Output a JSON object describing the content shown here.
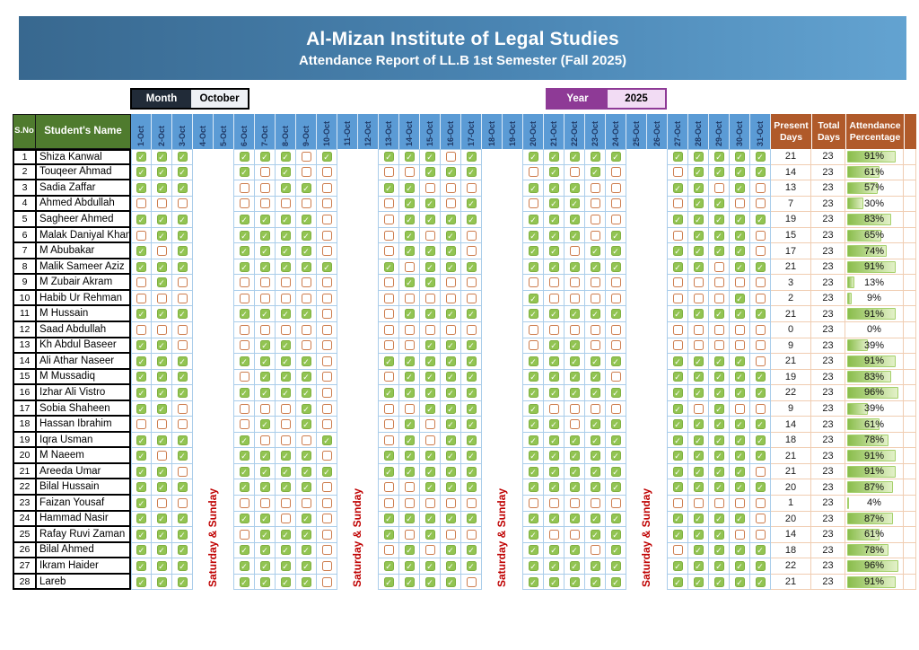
{
  "banner": {
    "title": "Al-Mizan Institute of Legal Studies",
    "subtitle": "Attendance Report of LL.B 1st Semester (Fall 2025)"
  },
  "filters": {
    "month_label": "Month",
    "month_value": "October",
    "year_label": "Year",
    "year_value": "2025"
  },
  "colors": {
    "banner_gradient_left": "#38688f",
    "banner_gradient_right": "#63a3d1",
    "header_green": "#4f7b2e",
    "header_blue": "#5b9bd5",
    "header_orange": "#b05a2a",
    "day_header_text": "#1f3864",
    "checked_green": "#92c452",
    "unchecked_border_orange": "#cd7d4e",
    "weekend_red": "#bf0000",
    "month_box_dark": "#212b38",
    "year_box_purple": "#8e3a96",
    "percent_bar_green": "#8abd4c"
  },
  "table": {
    "sno_header": "S.No",
    "name_header": "Student's Name",
    "present_header": "Present Days",
    "total_header": "Total Days",
    "attendance_header": "Attendance Percentage",
    "weekend_label": "Saturday & Sunday",
    "weekend_start_days": [
      4,
      11,
      18,
      25
    ],
    "school_days": [
      1,
      2,
      3,
      6,
      7,
      8,
      9,
      10,
      13,
      14,
      15,
      16,
      17,
      20,
      21,
      22,
      23,
      24,
      27,
      28,
      29,
      30,
      31
    ],
    "day_headers": [
      "1-Oct",
      "2-Oct",
      "3-Oct",
      "4-Oct",
      "5-Oct",
      "6-Oct",
      "7-Oct",
      "8-Oct",
      "9-Oct",
      "10-Oct",
      "11-Oct",
      "12-Oct",
      "13-Oct",
      "14-Oct",
      "15-Oct",
      "16-Oct",
      "17-Oct",
      "18-Oct",
      "19-Oct",
      "20-Oct",
      "21-Oct",
      "22-Oct",
      "23-Oct",
      "24-Oct",
      "25-Oct",
      "26-Oct",
      "27-Oct",
      "28-Oct",
      "29-Oct",
      "30-Oct",
      "31-Oct"
    ],
    "students": [
      {
        "sno": 1,
        "name": "Shiza Kanwal",
        "attendance": "11111101111011111111111",
        "present": 21,
        "total": 23,
        "percent": "91%"
      },
      {
        "sno": 2,
        "name": "Touqeer Ahmad",
        "attendance": "11110100001110101001111",
        "present": 14,
        "total": 23,
        "percent": "61%"
      },
      {
        "sno": 3,
        "name": "Sadia Zaffar",
        "attendance": "11100110110001110011010",
        "present": 13,
        "total": 23,
        "percent": "57%"
      },
      {
        "sno": 4,
        "name": "Ahmed Abdullah",
        "attendance": "00000000011010110001100",
        "present": 7,
        "total": 23,
        "percent": "30%"
      },
      {
        "sno": 5,
        "name": "Sagheer Ahmed",
        "attendance": "11111110011111110011111",
        "present": 19,
        "total": 23,
        "percent": "83%"
      },
      {
        "sno": 6,
        "name": "Malak Daniyal Khan",
        "attendance": "01111110010101110101110",
        "present": 15,
        "total": 23,
        "percent": "65%"
      },
      {
        "sno": 7,
        "name": "M Abubakar",
        "attendance": "10111110011101101111110",
        "present": 17,
        "total": 23,
        "percent": "74%"
      },
      {
        "sno": 8,
        "name": "Malik Sameer Aziz",
        "attendance": "11111111101111111111011",
        "present": 21,
        "total": 23,
        "percent": "91%"
      },
      {
        "sno": 9,
        "name": "M Zubair Akram",
        "attendance": "01000000011000000000000",
        "present": 3,
        "total": 23,
        "percent": "13%"
      },
      {
        "sno": 10,
        "name": "Habib Ur Rehman",
        "attendance": "00000000000001000000010",
        "present": 2,
        "total": 23,
        "percent": "9%"
      },
      {
        "sno": 11,
        "name": "M Hussain",
        "attendance": "11111110011111111111111",
        "present": 21,
        "total": 23,
        "percent": "91%"
      },
      {
        "sno": 12,
        "name": "Saad Abdullah",
        "attendance": "00000000000000000000000",
        "present": 0,
        "total": 23,
        "percent": "0%"
      },
      {
        "sno": 13,
        "name": "Kh Abdul Baseer",
        "attendance": "11001100001110110000000",
        "present": 9,
        "total": 23,
        "percent": "39%"
      },
      {
        "sno": 14,
        "name": "Ali Athar Naseer",
        "attendance": "11111110111111111111110",
        "present": 21,
        "total": 23,
        "percent": "91%"
      },
      {
        "sno": 15,
        "name": "M Mussadiq",
        "attendance": "11101110011111111011111",
        "present": 19,
        "total": 23,
        "percent": "83%"
      },
      {
        "sno": 16,
        "name": "Izhar Ali Vistro",
        "attendance": "11111110111111111111111",
        "present": 22,
        "total": 23,
        "percent": "96%"
      },
      {
        "sno": 17,
        "name": "Sobia Shaheen",
        "attendance": "11000010001111000010100",
        "present": 9,
        "total": 23,
        "percent": "39%"
      },
      {
        "sno": 18,
        "name": "Hassan Ibrahim",
        "attendance": "00001010010111101111111",
        "present": 14,
        "total": 23,
        "percent": "61%"
      },
      {
        "sno": 19,
        "name": "Iqra Usman",
        "attendance": "11110001010111111111111",
        "present": 18,
        "total": 23,
        "percent": "78%"
      },
      {
        "sno": 20,
        "name": "M Naeem",
        "attendance": "10111110111111111111111",
        "present": 21,
        "total": 23,
        "percent": "91%"
      },
      {
        "sno": 21,
        "name": "Areeda Umar",
        "attendance": "11011111111111111111110",
        "present": 21,
        "total": 23,
        "percent": "91%"
      },
      {
        "sno": 22,
        "name": "Bilal Hussain",
        "attendance": "11111110001111111111111",
        "present": 20,
        "total": 23,
        "percent": "87%"
      },
      {
        "sno": 23,
        "name": "Faizan Yousaf",
        "attendance": "10000000000000000000000",
        "present": 1,
        "total": 23,
        "percent": "4%"
      },
      {
        "sno": 24,
        "name": "Hammad Nasir",
        "attendance": "11111010111111111111110",
        "present": 20,
        "total": 23,
        "percent": "87%"
      },
      {
        "sno": 25,
        "name": "Rafay Ruvi Zaman",
        "attendance": "11101110101001001111100",
        "present": 14,
        "total": 23,
        "percent": "61%"
      },
      {
        "sno": 26,
        "name": "Bilal Ahmed",
        "attendance": "11111110010111110101111",
        "present": 18,
        "total": 23,
        "percent": "78%"
      },
      {
        "sno": 27,
        "name": "Ikram Haider",
        "attendance": "11111110111111111111111",
        "present": 22,
        "total": 23,
        "percent": "96%"
      },
      {
        "sno": 28,
        "name": "Lareb",
        "attendance": "11111110111101111111111",
        "present": 21,
        "total": 23,
        "percent": "91%"
      }
    ]
  }
}
